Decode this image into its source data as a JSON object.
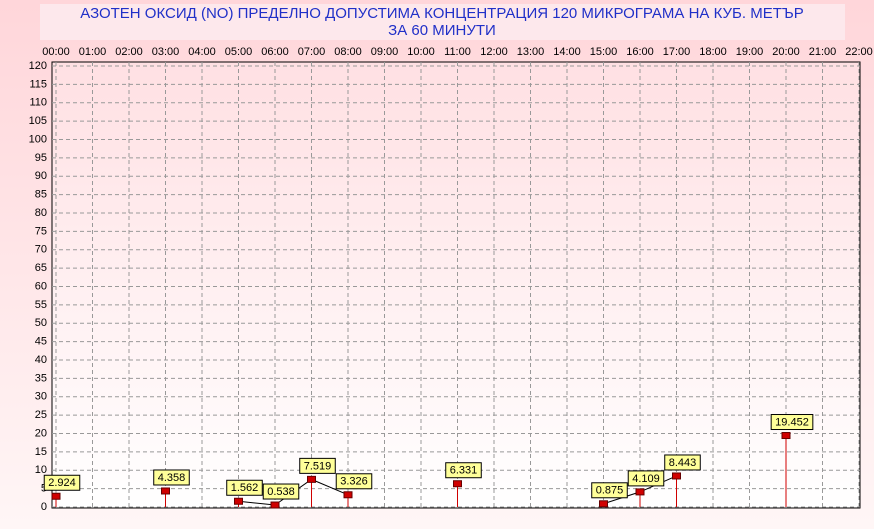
{
  "chart_data": {
    "type": "line",
    "title": "АЗОТЕН ОКСИД   (NO)     ПРЕДЕЛНО ДОПУСТИМА КОНЦЕНТРАЦИЯ 120 МИКРОГРАМА  НА КУБ. МЕТЪР",
    "subtitle": "ЗА 60 МИНУТИ",
    "categories": [
      "00:00",
      "01:00",
      "02:00",
      "03:00",
      "04:00",
      "05:00",
      "06:00",
      "07:00",
      "08:00",
      "09:00",
      "10:00",
      "11:00",
      "12:00",
      "13:00",
      "14:00",
      "15:00",
      "16:00",
      "17:00",
      "18:00",
      "19:00",
      "20:00",
      "21:00",
      "22:00"
    ],
    "series": [
      {
        "name": "NO",
        "color": "#d00000",
        "values": [
          2.924,
          null,
          null,
          4.358,
          null,
          1.562,
          0.538,
          7.519,
          3.326,
          null,
          null,
          6.331,
          null,
          null,
          null,
          0.875,
          4.109,
          8.443,
          null,
          null,
          19.452,
          null,
          null
        ]
      }
    ],
    "ylim": [
      0,
      120
    ],
    "yticks": [
      0,
      5,
      10,
      15,
      20,
      25,
      30,
      35,
      40,
      45,
      50,
      55,
      60,
      65,
      70,
      75,
      80,
      85,
      90,
      95,
      100,
      105,
      110,
      115,
      120
    ],
    "grid": true
  }
}
